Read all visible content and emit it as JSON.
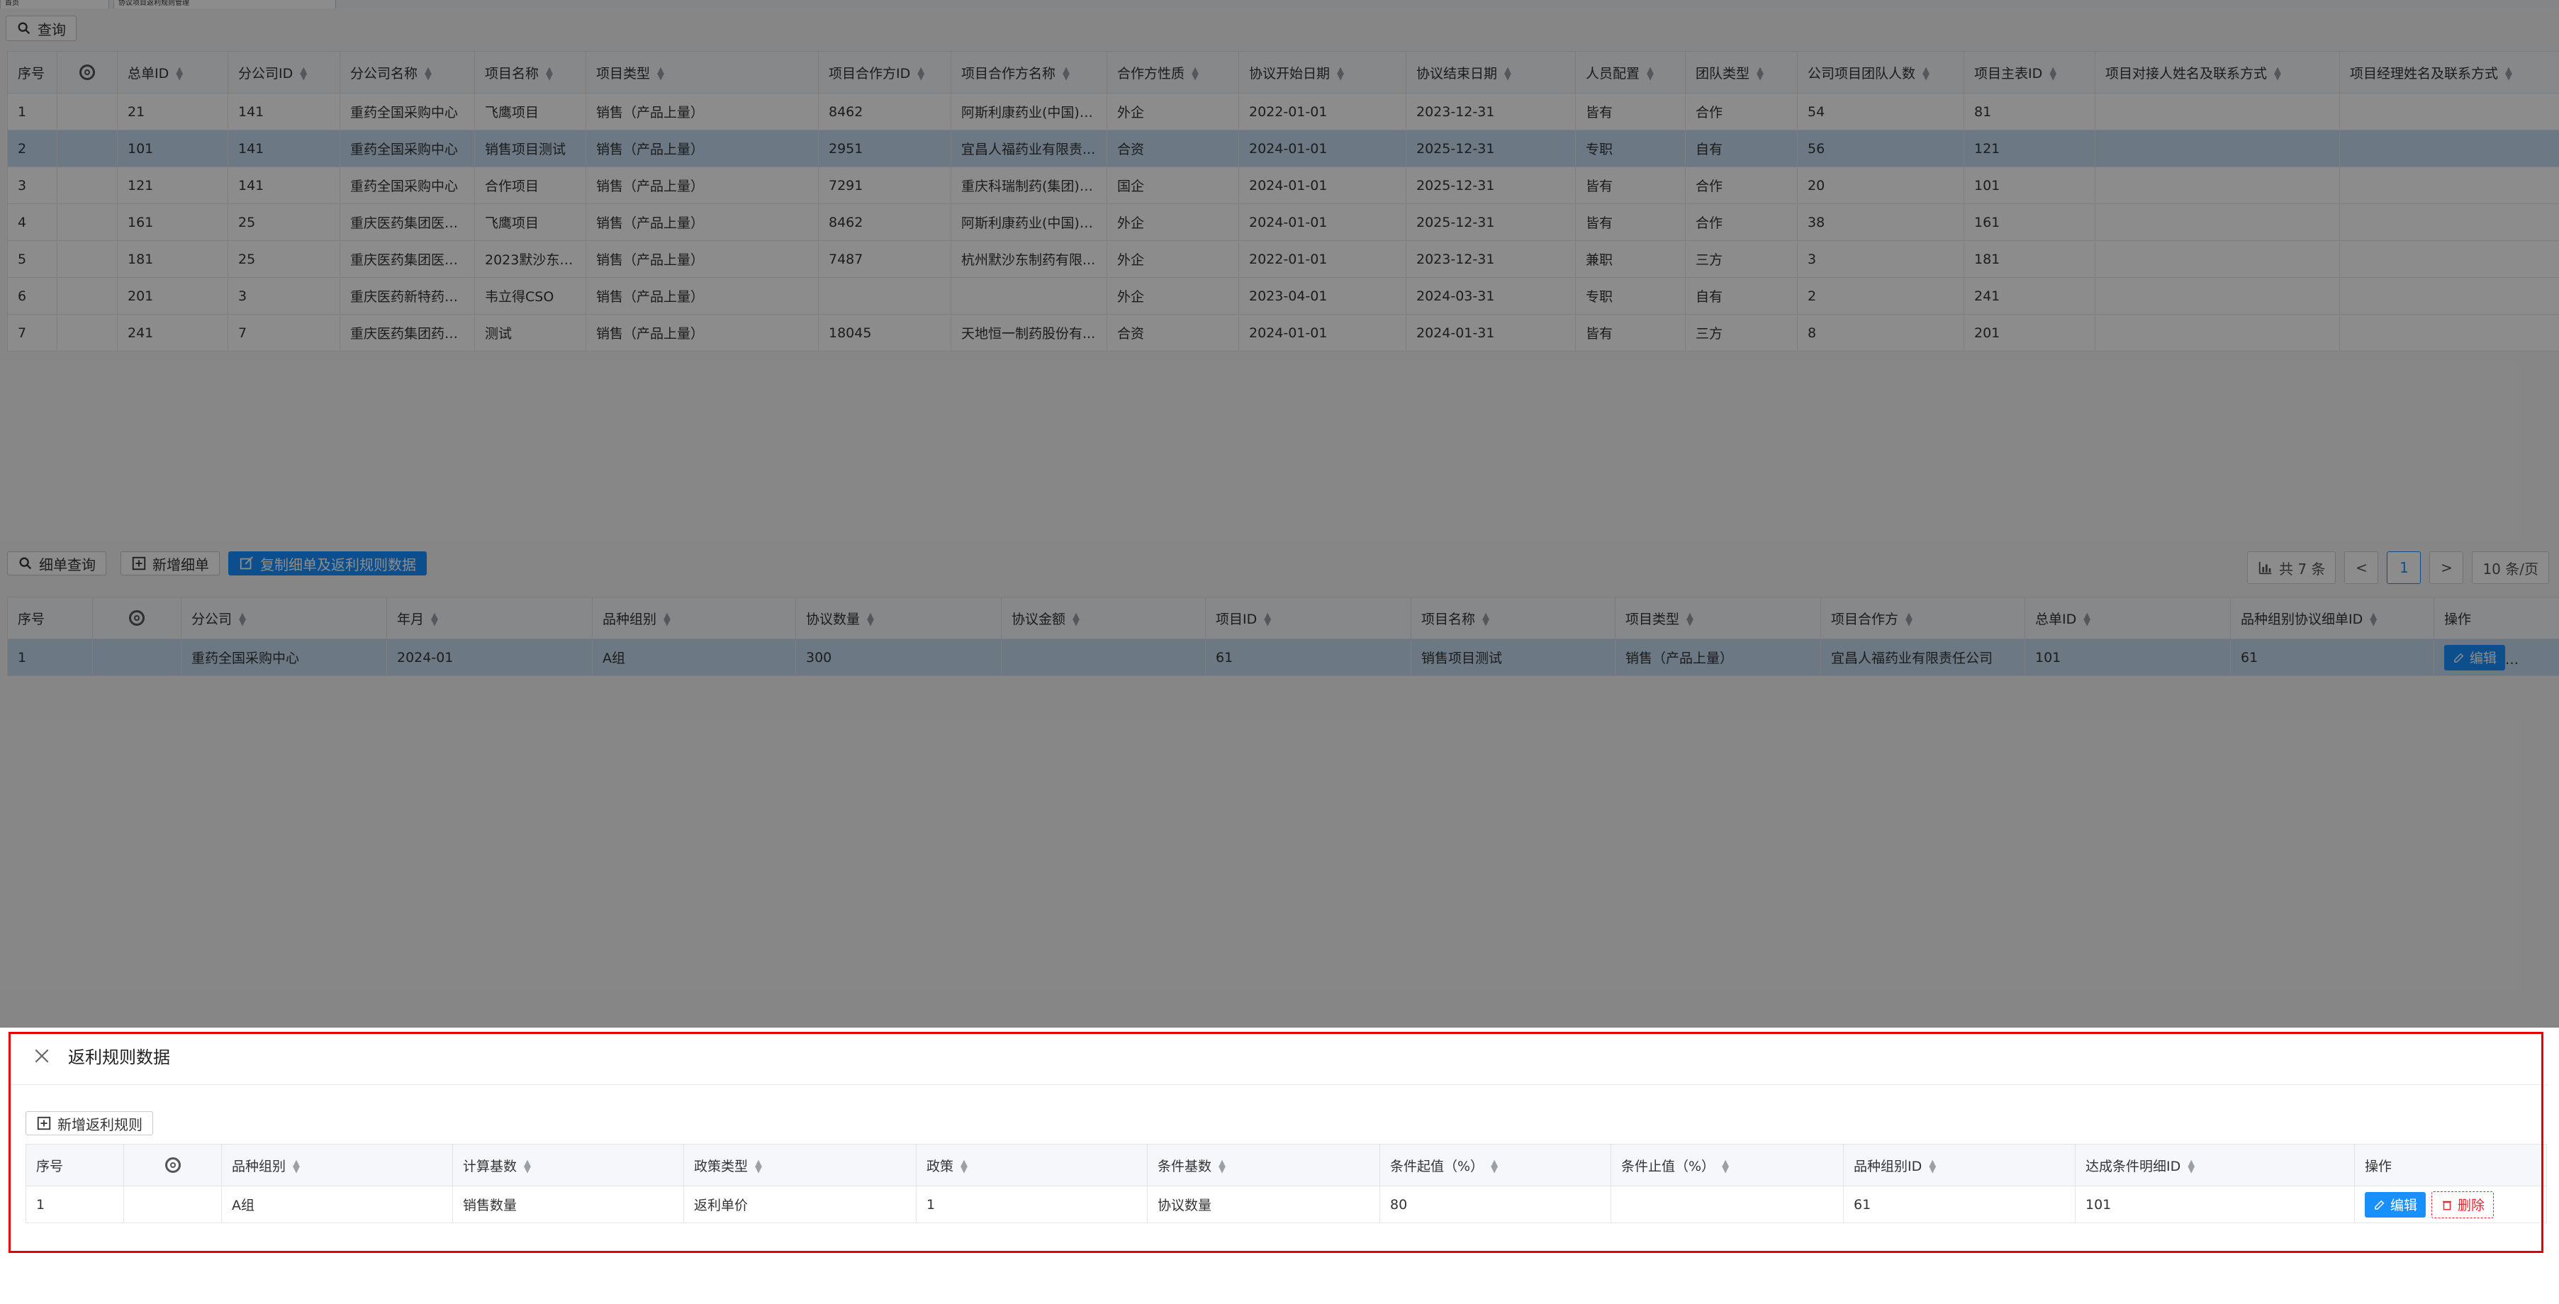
{
  "tabs": [
    {
      "label": "首页"
    },
    {
      "label": "协议项目返利规则管理"
    }
  ],
  "toolbar": {
    "query_label": "查询"
  },
  "main_table": {
    "columns": [
      "序号",
      "",
      "总单ID",
      "分公司ID",
      "分公司名称",
      "项目名称",
      "项目类型",
      "项目合作方ID",
      "项目合作方名称",
      "合作方性质",
      "协议开始日期",
      "协议结束日期",
      "人员配置",
      "团队类型",
      "公司项目团队人数",
      "项目主表ID",
      "项目对接人姓名及联系方式",
      "项目经理姓名及联系方式"
    ],
    "rows": [
      [
        "1",
        "",
        "21",
        "141",
        "重药全国采购中心",
        "飞鹰项目",
        "销售（产品上量）",
        "8462",
        "阿斯利康药业(中国)有...",
        "外企",
        "2022-01-01",
        "2023-12-31",
        "皆有",
        "合作",
        "54",
        "81",
        "",
        ""
      ],
      [
        "2",
        "",
        "101",
        "141",
        "重药全国采购中心",
        "销售项目测试",
        "销售（产品上量）",
        "2951",
        "宜昌人福药业有限责...",
        "合资",
        "2024-01-01",
        "2025-12-31",
        "专职",
        "自有",
        "56",
        "121",
        "",
        ""
      ],
      [
        "3",
        "",
        "121",
        "141",
        "重药全国采购中心",
        "合作项目",
        "销售（产品上量）",
        "7291",
        "重庆科瑞制药(集团)有...",
        "国企",
        "2024-01-01",
        "2025-12-31",
        "皆有",
        "合作",
        "20",
        "101",
        "",
        ""
      ],
      [
        "4",
        "",
        "161",
        "25",
        "重庆医药集团医贸...",
        "飞鹰项目",
        "销售（产品上量）",
        "8462",
        "阿斯利康药业(中国)有...",
        "外企",
        "2024-01-01",
        "2025-12-31",
        "皆有",
        "合作",
        "38",
        "161",
        "",
        ""
      ],
      [
        "5",
        "",
        "181",
        "25",
        "重庆医药集团医贸...",
        "2023默沙东渠...",
        "销售（产品上量）",
        "7487",
        "杭州默沙东制药有限...",
        "外企",
        "2022-01-01",
        "2023-12-31",
        "兼职",
        "三方",
        "3",
        "181",
        "",
        ""
      ],
      [
        "6",
        "",
        "201",
        "3",
        "重庆医药新特药品...",
        "韦立得CSO",
        "销售（产品上量）",
        "",
        "",
        "外企",
        "2023-04-01",
        "2024-03-31",
        "专职",
        "自有",
        "2",
        "241",
        "",
        ""
      ],
      [
        "7",
        "",
        "241",
        "7",
        "重庆医药集团药销...",
        "测试",
        "销售（产品上量）",
        "18045",
        "天地恒一制药股份有...",
        "合资",
        "2024-01-01",
        "2024-01-31",
        "皆有",
        "三方",
        "8",
        "201",
        "",
        ""
      ]
    ]
  },
  "detail_toolbar": {
    "query_label": "细单查询",
    "add_label": "新增细单",
    "copy_label": "复制细单及返利规则数据"
  },
  "pagination": {
    "total_label": "共 7 条",
    "prev": "<",
    "current": "1",
    "next": ">",
    "page_size": "10 条/页"
  },
  "detail_table": {
    "columns": [
      "序号",
      "",
      "分公司",
      "年月",
      "品种组别",
      "协议数量",
      "协议金额",
      "项目ID",
      "项目名称",
      "项目类型",
      "项目合作方",
      "总单ID",
      "品种组别协议细单ID",
      "操作"
    ],
    "rows": [
      [
        "1",
        "",
        "重药全国采购中心",
        "2024-01",
        "A组",
        "300",
        "",
        "61",
        "销售项目测试",
        "销售（产品上量）",
        "宜昌人福药业有限责任公司",
        "101",
        "61",
        ""
      ]
    ],
    "edit_label": "编辑",
    "delete_label": "删除"
  },
  "drawer": {
    "title": "返利规则数据",
    "add_label": "新增返利规则",
    "columns": [
      "序号",
      "",
      "品种组别",
      "计算基数",
      "政策类型",
      "政策",
      "条件基数",
      "条件起值（%）",
      "条件止值（%）",
      "品种组别ID",
      "达成条件明细ID",
      "操作"
    ],
    "rows": [
      [
        "1",
        "",
        "A组",
        "销售数量",
        "返利单价",
        "1",
        "协议数量",
        "80",
        "",
        "61",
        "101",
        ""
      ]
    ],
    "edit_label": "编辑",
    "delete_label": "删除"
  },
  "colors": {
    "accent": "#1890ff",
    "selected_row": "#c5ddf2",
    "danger": "#f5222d",
    "highlight_border": "#e60000"
  }
}
